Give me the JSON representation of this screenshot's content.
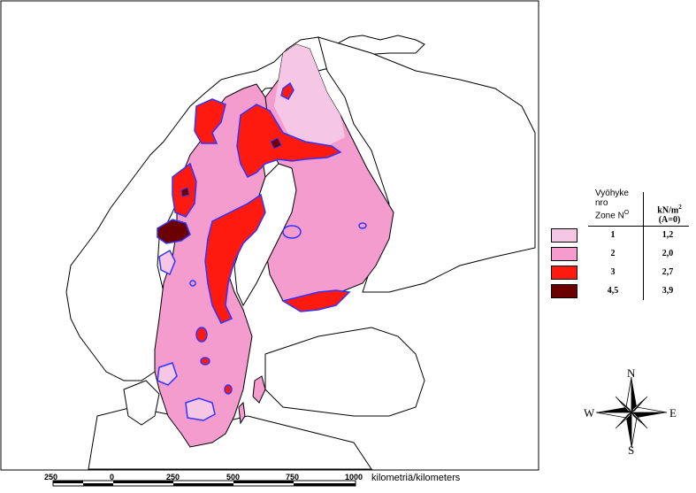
{
  "legend": {
    "header_zone": "Vyöhyke\nnro\nZone N°",
    "header_zone_line1": "Vyöhyke",
    "header_zone_line2": "nro",
    "header_zone_line3": "Zone N",
    "header_zone_sup": "O",
    "header_load": "kN/m",
    "header_load_sup": "2",
    "header_load_line2": "(A=0)",
    "rows": [
      {
        "zone": "1",
        "value": "1,2",
        "color": "#f6c7e4"
      },
      {
        "zone": "2",
        "value": "2,0",
        "color": "#f49ccd"
      },
      {
        "zone": "3",
        "value": "2,7",
        "color": "#ff1a0f"
      },
      {
        "zone": "4,5",
        "value": "3,9",
        "color": "#6b0000"
      }
    ]
  },
  "scale_bar": {
    "ticks": [
      "250",
      "0",
      "250",
      "500",
      "750",
      "1000"
    ],
    "unit_label": "kilometriä/kilometers"
  },
  "compass": {
    "north": "N",
    "south": "S",
    "east": "E",
    "west": "W"
  },
  "colors": {
    "zone_boundary": "#3333ff",
    "coastline": "#000000",
    "sea": "#ffffff"
  }
}
